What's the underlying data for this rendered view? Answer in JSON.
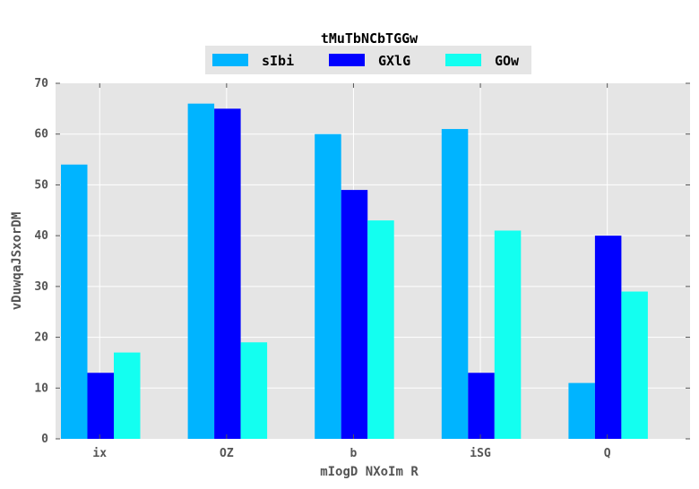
{
  "chart_data": {
    "type": "bar",
    "title": "tMuTbNCbTGGw",
    "xlabel": "mIogD NXoIm R",
    "ylabel": "vDuwqaJSxorDM",
    "categories": [
      "ix",
      "OZ",
      "b",
      "iSG",
      "Q"
    ],
    "series": [
      {
        "name": "sIbi",
        "color": "#00b4ff",
        "values": [
          54,
          66,
          60,
          61,
          11
        ]
      },
      {
        "name": "GXlG",
        "color": "#0000ff",
        "values": [
          13,
          65,
          49,
          13,
          40
        ]
      },
      {
        "name": "GOw",
        "color": "#13fff0",
        "values": [
          17,
          19,
          43,
          41,
          29
        ]
      }
    ],
    "ylim": [
      0,
      70
    ],
    "yticks": [
      0,
      10,
      20,
      30,
      40,
      50,
      60,
      70
    ],
    "grid": true,
    "legend_position": "top-center",
    "background_color": "#e5e5e5"
  }
}
